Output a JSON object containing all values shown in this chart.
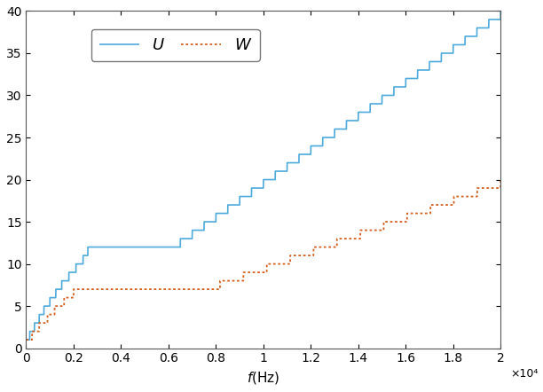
{
  "title": "",
  "xlabel": "f\\,(Hz)",
  "ylabel": "",
  "xlim": [
    0,
    20000
  ],
  "ylim": [
    0,
    40
  ],
  "xticks": [
    0,
    2000,
    4000,
    6000,
    8000,
    10000,
    12000,
    14000,
    16000,
    18000,
    20000
  ],
  "xtick_labels": [
    "0",
    "0.2",
    "0.4",
    "0.6",
    "0.8",
    "1",
    "1.2",
    "1.4",
    "1.6",
    "1.8",
    "2"
  ],
  "yticks": [
    0,
    5,
    10,
    15,
    20,
    25,
    30,
    35,
    40
  ],
  "xscale_label": "×10⁴",
  "U_color": "#4DAADC",
  "W_color": "#D45F1E",
  "bg_color": "#FFFFFF"
}
